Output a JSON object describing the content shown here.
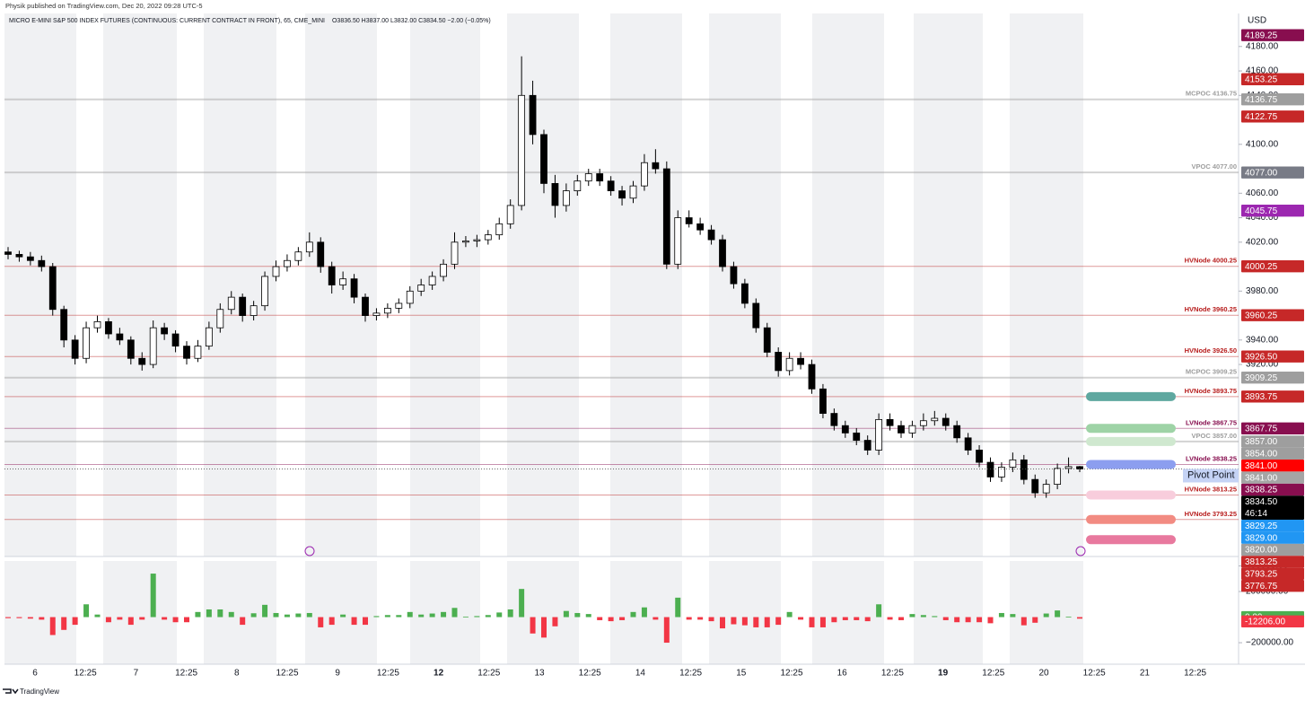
{
  "published": "Physik published on TradingView.com, Dec 20, 2022 09:28 UTC-5",
  "branding": "TradingView",
  "chart_data": {
    "type": "candlestick",
    "title": "MICRO E-MINI S&P 500 INDEX FUTURES (CONTINUOUS: CURRENT CONTRACT IN FRONT), 65, CME_MINI",
    "legend": "O3836.50  H3837.00  L3832.00  C3834.50  −2.00 (−0.05%)",
    "currency": "USD",
    "xticks": [
      "6",
      "12:25",
      "7",
      "12:25",
      "8",
      "12:25",
      "9",
      "12:25",
      "12",
      "12:25",
      "13",
      "12:25",
      "14",
      "12:25",
      "15",
      "12:25",
      "16",
      "12:25",
      "19",
      "12:25",
      "20",
      "12:25",
      "21",
      "12:25"
    ],
    "up_color": "#ffffff",
    "down_color": "#000000",
    "wick_color": "#000000",
    "ylim": [
      3763,
      4207
    ],
    "yticks": [
      {
        "value": 4180,
        "label": "4180.00"
      },
      {
        "value": 4160,
        "label": "4160.00"
      },
      {
        "value": 4140,
        "label": "4140.00"
      },
      {
        "value": 4100,
        "label": "4100.00"
      },
      {
        "value": 4060,
        "label": "4060.00"
      },
      {
        "value": 4040,
        "label": "4040.00"
      },
      {
        "value": 4020,
        "label": "4020.00"
      },
      {
        "value": 3980,
        "label": "3980.00"
      },
      {
        "value": 3940,
        "label": "3940.00"
      },
      {
        "value": 3920,
        "label": "3920.00"
      }
    ],
    "candles": [
      [
        4012,
        4016,
        4006,
        4010
      ],
      [
        4010,
        4013,
        4004,
        4008
      ],
      [
        4008,
        4012,
        4001,
        4005
      ],
      [
        4005,
        4009,
        3996,
        4000
      ],
      [
        4000,
        4003,
        3960,
        3965
      ],
      [
        3965,
        3968,
        3934,
        3940
      ],
      [
        3940,
        3944,
        3920,
        3925
      ],
      [
        3925,
        3955,
        3921,
        3950
      ],
      [
        3950,
        3960,
        3946,
        3955
      ],
      [
        3955,
        3958,
        3941,
        3945
      ],
      [
        3945,
        3950,
        3936,
        3940
      ],
      [
        3940,
        3943,
        3920,
        3925
      ],
      [
        3925,
        3930,
        3915,
        3920
      ],
      [
        3920,
        3956,
        3917,
        3950
      ],
      [
        3950,
        3954,
        3940,
        3945
      ],
      [
        3945,
        3948,
        3930,
        3935
      ],
      [
        3935,
        3939,
        3920,
        3925
      ],
      [
        3925,
        3940,
        3922,
        3935
      ],
      [
        3935,
        3955,
        3932,
        3950
      ],
      [
        3950,
        3970,
        3946,
        3965
      ],
      [
        3965,
        3980,
        3961,
        3975
      ],
      [
        3975,
        3978,
        3955,
        3960
      ],
      [
        3960,
        3972,
        3956,
        3968
      ],
      [
        3968,
        3996,
        3964,
        3992
      ],
      [
        3992,
        4005,
        3988,
        4000
      ],
      [
        4000,
        4010,
        3996,
        4005
      ],
      [
        4005,
        4016,
        4001,
        4012
      ],
      [
        4012,
        4028,
        4008,
        4020
      ],
      [
        4020,
        4024,
        3995,
        4000
      ],
      [
        4000,
        4004,
        3978,
        3985
      ],
      [
        3985,
        3996,
        3981,
        3990
      ],
      [
        3990,
        3994,
        3970,
        3975
      ],
      [
        3975,
        3978,
        3955,
        3960
      ],
      [
        3960,
        3966,
        3956,
        3962
      ],
      [
        3962,
        3970,
        3958,
        3966
      ],
      [
        3966,
        3974,
        3962,
        3970
      ],
      [
        3970,
        3984,
        3966,
        3980
      ],
      [
        3980,
        3990,
        3976,
        3985
      ],
      [
        3985,
        3996,
        3981,
        3992
      ],
      [
        3992,
        4006,
        3988,
        4002
      ],
      [
        4002,
        4028,
        3998,
        4020
      ],
      [
        4020,
        4025,
        4016,
        4021
      ],
      [
        4021,
        4026,
        4016,
        4022
      ],
      [
        4022,
        4030,
        4018,
        4026
      ],
      [
        4026,
        4040,
        4022,
        4035
      ],
      [
        4035,
        4055,
        4031,
        4050
      ],
      [
        4050,
        4172,
        4046,
        4140
      ],
      [
        4140,
        4152,
        4100,
        4108
      ],
      [
        4108,
        4112,
        4060,
        4068
      ],
      [
        4068,
        4075,
        4040,
        4050
      ],
      [
        4050,
        4068,
        4045,
        4062
      ],
      [
        4062,
        4075,
        4058,
        4070
      ],
      [
        4070,
        4080,
        4066,
        4076
      ],
      [
        4076,
        4080,
        4066,
        4070
      ],
      [
        4070,
        4074,
        4058,
        4062
      ],
      [
        4062,
        4066,
        4050,
        4056
      ],
      [
        4056,
        4070,
        4052,
        4066
      ],
      [
        4066,
        4092,
        4062,
        4085
      ],
      [
        4085,
        4096,
        4076,
        4080
      ],
      [
        4080,
        4086,
        3998,
        4002
      ],
      [
        4002,
        4046,
        3998,
        4040
      ],
      [
        4040,
        4046,
        4032,
        4035
      ],
      [
        4035,
        4040,
        4026,
        4030
      ],
      [
        4030,
        4034,
        4018,
        4022
      ],
      [
        4022,
        4026,
        3996,
        4000
      ],
      [
        4000,
        4004,
        3982,
        3986
      ],
      [
        3986,
        3990,
        3966,
        3970
      ],
      [
        3970,
        3974,
        3946,
        3950
      ],
      [
        3950,
        3954,
        3926,
        3930
      ],
      [
        3930,
        3934,
        3910,
        3915
      ],
      [
        3915,
        3930,
        3911,
        3925
      ],
      [
        3925,
        3930,
        3916,
        3920
      ],
      [
        3920,
        3924,
        3896,
        3900
      ],
      [
        3900,
        3904,
        3876,
        3880
      ],
      [
        3880,
        3884,
        3866,
        3870
      ],
      [
        3870,
        3874,
        3860,
        3864
      ],
      [
        3864,
        3868,
        3854,
        3858
      ],
      [
        3858,
        3862,
        3846,
        3850
      ],
      [
        3850,
        3880,
        3846,
        3875
      ],
      [
        3875,
        3880,
        3866,
        3870
      ],
      [
        3870,
        3874,
        3860,
        3864
      ],
      [
        3864,
        3874,
        3860,
        3870
      ],
      [
        3870,
        3880,
        3866,
        3874
      ],
      [
        3874,
        3882,
        3870,
        3876
      ],
      [
        3876,
        3880,
        3866,
        3870
      ],
      [
        3870,
        3874,
        3856,
        3860
      ],
      [
        3860,
        3864,
        3846,
        3850
      ],
      [
        3850,
        3854,
        3836,
        3840
      ],
      [
        3840,
        3844,
        3824,
        3828
      ],
      [
        3828,
        3840,
        3824,
        3836
      ],
      [
        3836,
        3848,
        3832,
        3842
      ],
      [
        3842,
        3846,
        3822,
        3826
      ],
      [
        3826,
        3830,
        3811,
        3815
      ],
      [
        3815,
        3826,
        3811,
        3822
      ],
      [
        3822,
        3839,
        3818,
        3835
      ],
      [
        3835,
        3844,
        3831,
        3836.5
      ],
      [
        3836.5,
        3837,
        3832,
        3834.5
      ]
    ],
    "levels": [
      {
        "value": 4136.75,
        "label": "MCPOC 4136.75",
        "color": "#9e9e9e"
      },
      {
        "value": 4077,
        "label": "VPOC 4077.00",
        "color": "#9e9e9e"
      },
      {
        "value": 4000.25,
        "label": "HVNode 4000.25",
        "color": "#b71c1c"
      },
      {
        "value": 3960.25,
        "label": "HVNode 3960.25",
        "color": "#b71c1c"
      },
      {
        "value": 3926.5,
        "label": "HVNode 3926.50",
        "color": "#b71c1c"
      },
      {
        "value": 3909.25,
        "label": "MCPOC 3909.25",
        "color": "#9e9e9e"
      },
      {
        "value": 3893.75,
        "label": "HVNode 3893.75",
        "color": "#b71c1c"
      },
      {
        "value": 3867.75,
        "label": "LVNode 3867.75",
        "color": "#880e4f"
      },
      {
        "value": 3857,
        "label": "VPOC 3857.00",
        "color": "#9e9e9e"
      },
      {
        "value": 3838.25,
        "label": "LVNode 3838.25",
        "color": "#880e4f"
      },
      {
        "value": 3813.25,
        "label": "HVNode 3813.25",
        "color": "#b71c1c"
      },
      {
        "value": 3793.25,
        "label": "HVNode 3793.25",
        "color": "#b71c1c"
      }
    ],
    "price_labels": [
      {
        "value": 4189.25,
        "label": "4189.25",
        "color": "#880e4f"
      },
      {
        "value": 4153.25,
        "label": "4153.25",
        "color": "#c62828"
      },
      {
        "value": 4136.75,
        "label": "4136.75",
        "color": "#9e9e9e"
      },
      {
        "value": 4122.75,
        "label": "4122.75",
        "color": "#c62828"
      },
      {
        "value": 4077,
        "label": "4077.00",
        "color": "#787b86"
      },
      {
        "value": 4045.75,
        "label": "4045.75",
        "color": "#9c27b0"
      },
      {
        "value": 4000.25,
        "label": "4000.25",
        "color": "#c62828"
      },
      {
        "value": 3960.25,
        "label": "3960.25",
        "color": "#c62828"
      },
      {
        "value": 3926.5,
        "label": "3926.50",
        "color": "#c62828"
      },
      {
        "value": 3909.25,
        "label": "3909.25",
        "color": "#9e9e9e"
      },
      {
        "value": 3893.75,
        "label": "3893.75",
        "color": "#c62828"
      },
      {
        "value": 3867.75,
        "label": "3867.75",
        "color": "#880e4f"
      },
      {
        "value": 3857,
        "label": "3857.00",
        "color": "#9e9e9e"
      },
      {
        "value": 3854,
        "label": "3854.00",
        "color": "#9e9e9e"
      },
      {
        "value": 3841,
        "label": "3841.00",
        "color": "#ff0000"
      },
      {
        "value": 3841,
        "label": "3841.00",
        "color": "#a5a5a5"
      },
      {
        "value": 3838.25,
        "label": "3838.25",
        "color": "#880e4f"
      },
      {
        "value": 3834.5,
        "label": "3834.50",
        "color": "#000000"
      },
      {
        "value": 3829.25,
        "label": "3829.25",
        "color": "#2196f3"
      },
      {
        "value": 3829,
        "label": "3829.00",
        "color": "#2196f3"
      },
      {
        "value": 3820,
        "label": "3820.00",
        "color": "#9e9e9e"
      },
      {
        "value": 3813.25,
        "label": "3813.25",
        "color": "#c62828"
      },
      {
        "value": 3793.25,
        "label": "3793.25",
        "color": "#c62828"
      },
      {
        "value": 3776.75,
        "label": "3776.75",
        "color": "#c62828"
      }
    ],
    "countdown": "46:14",
    "zones": [
      {
        "value": 3893.75,
        "color": "#5fa8a0"
      },
      {
        "value": 3867.75,
        "color": "#9ed3a6"
      },
      {
        "value": 3857,
        "color": "#cfe8cf"
      },
      {
        "value": 3838.25,
        "color": "#8c9eef"
      },
      {
        "value": 3813.25,
        "color": "#f8cddc"
      },
      {
        "value": 3793.25,
        "color": "#f28b82"
      },
      {
        "value": 3776.75,
        "color": "#e8799e"
      }
    ],
    "zone_label": "Pivot Point",
    "delta": {
      "up_color": "#4caf50",
      "down_color": "#f23645",
      "ylim": [
        -368000,
        438600
      ],
      "yticks": [
        {
          "value": 400000,
          "label": "400000.00"
        },
        {
          "value": 200000,
          "label": "200000.00"
        },
        {
          "value": -200000,
          "label": "−200000.00"
        }
      ],
      "price_labels": [
        {
          "value": 0,
          "label": "0.00",
          "color": "#4caf50"
        },
        {
          "value": -12206,
          "label": "-12206.00",
          "color": "#f23645"
        }
      ],
      "values": [
        -8000,
        -8000,
        -12000,
        -20000,
        -140000,
        -100000,
        -60000,
        100000,
        20000,
        -40000,
        -20000,
        -60000,
        -20000,
        340000,
        -20000,
        -40000,
        -40000,
        40000,
        60000,
        60000,
        40000,
        -60000,
        30000,
        96000,
        32000,
        20000,
        28000,
        32000,
        -80000,
        -60000,
        20000,
        -60000,
        -60000,
        8000,
        16000,
        16000,
        40000,
        20000,
        28000,
        40000,
        72000,
        4000,
        8000,
        16000,
        36000,
        60000,
        220000,
        -128000,
        -160000,
        -72000,
        48000,
        32000,
        24000,
        -24000,
        -32000,
        -24000,
        40000,
        76000,
        -20000,
        -200000,
        152000,
        -20000,
        -20000,
        -32000,
        -88000,
        -56000,
        -64000,
        -80000,
        -80000,
        -60000,
        40000,
        -20000,
        -80000,
        -80000,
        -40000,
        -24000,
        -24000,
        -32000,
        100000,
        -20000,
        -24000,
        24000,
        16000,
        8000,
        -24000,
        -40000,
        -40000,
        -40000,
        -48000,
        32000,
        24000,
        -64000,
        -44000,
        28000,
        52000,
        4000,
        -12206
      ]
    }
  }
}
